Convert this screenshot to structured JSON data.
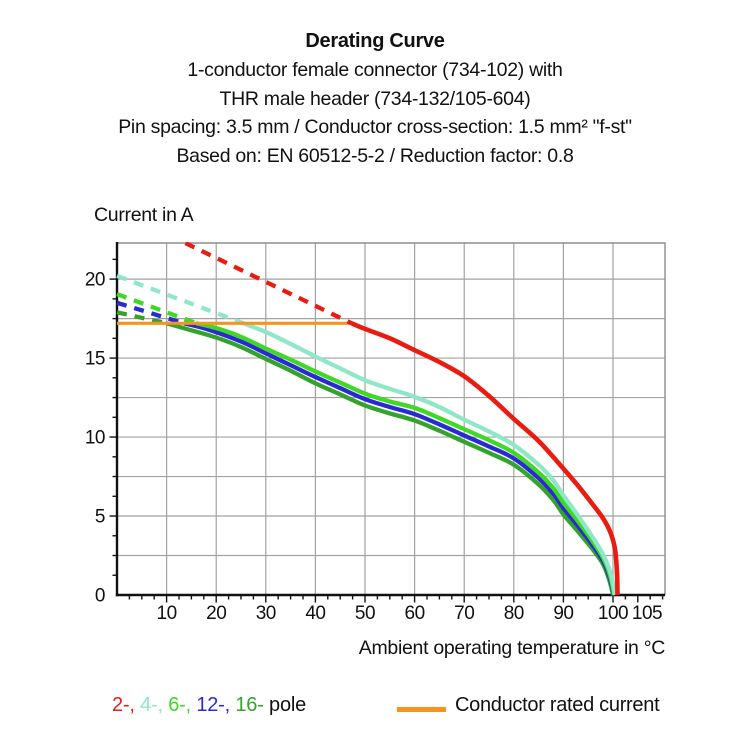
{
  "title": {
    "heading": "Derating Curve",
    "lines": [
      "1-conductor female connector (734-102) with",
      "THR male header (734-132/105-604)",
      "Pin spacing: 3.5 mm / Conductor cross-section: 1.5 mm² \"f-st\"",
      "Based on: EN 60512-5-2 / Reduction factor: 0.8"
    ]
  },
  "y_axis_title": "Current in A",
  "x_axis_title": "Ambient operating temperature in °C",
  "legend": {
    "poles": [
      {
        "label": "2-",
        "color": "#ea1b10"
      },
      {
        "label": "4-",
        "color": "#8fe7c7"
      },
      {
        "label": "6-",
        "color": "#3fd824"
      },
      {
        "label": "12-",
        "color": "#2a2ad4"
      },
      {
        "label": "16-",
        "color": "#33a32b"
      }
    ],
    "separator": ", ",
    "suffix": " pole",
    "rated_label": "Conductor rated current",
    "rated_color": "#f8941e"
  },
  "chart_data": {
    "type": "line",
    "title": "Derating Curve",
    "xlabel": "Ambient operating temperature in °C",
    "ylabel": "Current in A",
    "xlim": [
      0,
      110.5
    ],
    "ylim": [
      0,
      22.28
    ],
    "grid": true,
    "axes": {
      "x": {
        "major_ticks": [
          10,
          20,
          30,
          40,
          50,
          60,
          70,
          80,
          90,
          100,
          105
        ],
        "minor_step": 2.5,
        "grid_step": 10,
        "grid_from": 10,
        "grid_to": 100
      },
      "y": {
        "major_ticks": [
          0,
          5,
          10,
          15,
          20
        ],
        "minor_step": 1.25,
        "grid_step": 2.5,
        "grid_from": 2.5,
        "grid_to": 20
      }
    },
    "rated_line": {
      "name": "Conductor rated current",
      "color": "#f8941e",
      "value": 17.2,
      "x_range": [
        0,
        47.3
      ]
    },
    "series": [
      {
        "name": "16-pole",
        "color": "#33a32b",
        "dashed": [
          [
            0,
            17.9
          ],
          [
            10,
            17.2
          ]
        ],
        "solid": [
          [
            10,
            17.2
          ],
          [
            14,
            16.85
          ],
          [
            20,
            16.3
          ],
          [
            25,
            15.7
          ],
          [
            30,
            14.95
          ],
          [
            35,
            14.2
          ],
          [
            40,
            13.4
          ],
          [
            45,
            12.7
          ],
          [
            50,
            12.0
          ],
          [
            55,
            11.5
          ],
          [
            60,
            11.05
          ],
          [
            65,
            10.4
          ],
          [
            70,
            9.7
          ],
          [
            75,
            9.0
          ],
          [
            80,
            8.25
          ],
          [
            85,
            7.0
          ],
          [
            88,
            6.0
          ],
          [
            90,
            5.1
          ],
          [
            93,
            4.0
          ],
          [
            96,
            2.85
          ],
          [
            98,
            1.95
          ],
          [
            99.2,
            1.0
          ],
          [
            100.05,
            0
          ]
        ]
      },
      {
        "name": "12-pole",
        "color": "#2a2ad4",
        "dashed": [
          [
            0,
            18.5
          ],
          [
            13.5,
            17.2
          ]
        ],
        "solid": [
          [
            13.5,
            17.2
          ],
          [
            18,
            16.85
          ],
          [
            25,
            16.05
          ],
          [
            30,
            15.3
          ],
          [
            35,
            14.55
          ],
          [
            40,
            13.8
          ],
          [
            45,
            13.1
          ],
          [
            50,
            12.4
          ],
          [
            55,
            11.9
          ],
          [
            60,
            11.45
          ],
          [
            65,
            10.8
          ],
          [
            70,
            10.1
          ],
          [
            75,
            9.4
          ],
          [
            80,
            8.65
          ],
          [
            85,
            7.4
          ],
          [
            88,
            6.4
          ],
          [
            90,
            5.5
          ],
          [
            93,
            4.35
          ],
          [
            96,
            3.1
          ],
          [
            98,
            2.15
          ],
          [
            99.3,
            1.15
          ],
          [
            100.15,
            0
          ]
        ]
      },
      {
        "name": "6-pole",
        "color": "#3fd824",
        "dashed": [
          [
            0,
            19.05
          ],
          [
            16,
            17.2
          ]
        ],
        "solid": [
          [
            16,
            17.2
          ],
          [
            20,
            16.9
          ],
          [
            25,
            16.35
          ],
          [
            30,
            15.6
          ],
          [
            35,
            14.9
          ],
          [
            40,
            14.15
          ],
          [
            45,
            13.45
          ],
          [
            50,
            12.75
          ],
          [
            55,
            12.25
          ],
          [
            60,
            11.85
          ],
          [
            65,
            11.2
          ],
          [
            70,
            10.5
          ],
          [
            75,
            9.8
          ],
          [
            80,
            9.0
          ],
          [
            85,
            7.75
          ],
          [
            88,
            6.75
          ],
          [
            90,
            5.85
          ],
          [
            93,
            4.65
          ],
          [
            96,
            3.35
          ],
          [
            98,
            2.35
          ],
          [
            99.4,
            1.25
          ],
          [
            100.25,
            0
          ]
        ]
      },
      {
        "name": "4-pole",
        "color": "#8fe7c7",
        "dashed": [
          [
            0,
            20.2
          ],
          [
            25.5,
            17.2
          ]
        ],
        "solid": [
          [
            25.5,
            17.2
          ],
          [
            30,
            16.65
          ],
          [
            35,
            15.9
          ],
          [
            40,
            15.1
          ],
          [
            45,
            14.35
          ],
          [
            50,
            13.6
          ],
          [
            55,
            13.05
          ],
          [
            60,
            12.55
          ],
          [
            65,
            11.9
          ],
          [
            70,
            11.1
          ],
          [
            75,
            10.35
          ],
          [
            80,
            9.5
          ],
          [
            85,
            8.25
          ],
          [
            88,
            7.25
          ],
          [
            90,
            6.3
          ],
          [
            93,
            5.0
          ],
          [
            96,
            3.6
          ],
          [
            98,
            2.55
          ],
          [
            99.5,
            1.4
          ],
          [
            100.4,
            0
          ]
        ]
      },
      {
        "name": "2-pole",
        "color": "#ea1b10",
        "dashed": [
          [
            13.8,
            22.28
          ],
          [
            47.3,
            17.2
          ]
        ],
        "solid": [
          [
            47.3,
            17.2
          ],
          [
            50,
            16.85
          ],
          [
            55,
            16.25
          ],
          [
            60,
            15.5
          ],
          [
            65,
            14.75
          ],
          [
            70,
            13.85
          ],
          [
            75,
            12.6
          ],
          [
            80,
            11.15
          ],
          [
            85,
            9.75
          ],
          [
            90,
            8.0
          ],
          [
            93,
            6.9
          ],
          [
            96,
            5.7
          ],
          [
            98,
            4.85
          ],
          [
            99.5,
            3.95
          ],
          [
            100.4,
            2.9
          ],
          [
            100.8,
            1.4
          ],
          [
            100.9,
            0
          ]
        ]
      }
    ]
  }
}
